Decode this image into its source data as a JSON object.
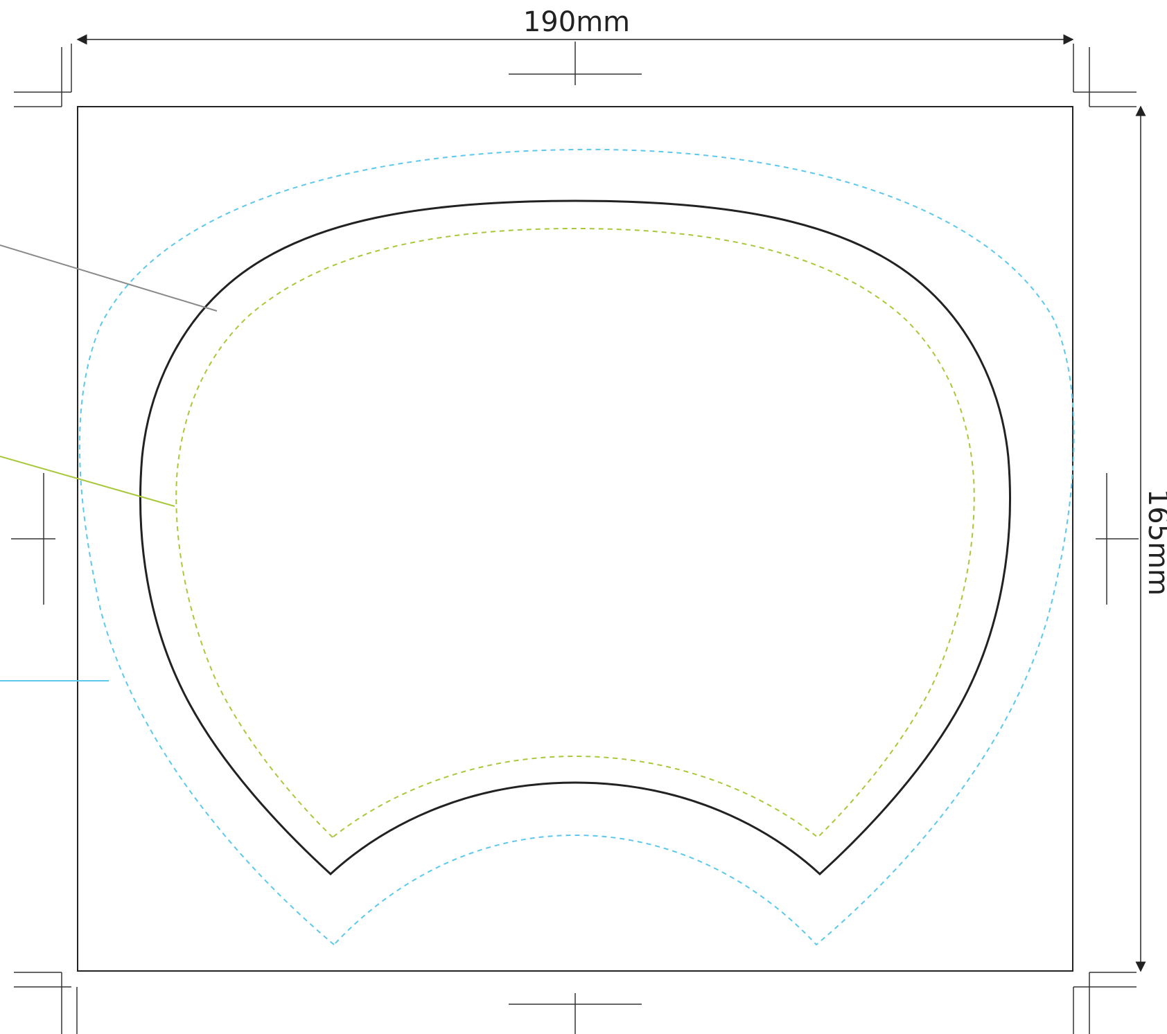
{
  "dimensions": {
    "width_label": "190mm",
    "height_label": "165mm"
  },
  "colors": {
    "outline": "#222222",
    "trim_line": "#222222",
    "crop_marks": "#333333",
    "bleed_line": "#5bc8ec",
    "safe_line": "#a8c83a",
    "leader_gray": "#8a8a8a",
    "background": "#ffffff"
  }
}
